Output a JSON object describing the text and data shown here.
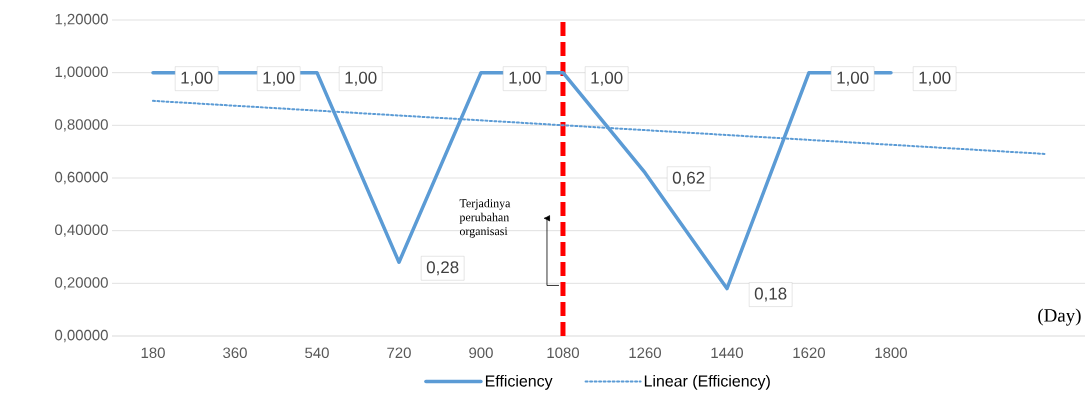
{
  "chart_data": {
    "type": "line",
    "xlabel": "(Day)",
    "x": [
      180,
      360,
      540,
      720,
      900,
      1080,
      1260,
      1440,
      1620,
      1800
    ],
    "series": [
      {
        "name": "Efficiency",
        "color": "#5b9bd5",
        "line_style": "solid",
        "values": [
          1.0,
          1.0,
          1.0,
          0.28,
          1.0,
          1.0,
          0.62,
          0.18,
          1.0,
          1.0
        ],
        "value_labels": [
          "1,00",
          "1,00",
          "1,00",
          "0,28",
          "1,00",
          "1,00",
          "0,62",
          "0,18",
          "1,00",
          "1,00"
        ]
      },
      {
        "name": "Linear (Efficiency)",
        "type": "line",
        "color": "#5b9bd5",
        "line_style": "dotted",
        "x": [
          180,
          2142
        ],
        "values": [
          0.893,
          0.691
        ]
      }
    ],
    "xlim": [
      90,
      2226
    ],
    "xticks": [
      180,
      360,
      540,
      720,
      900,
      1080,
      1260,
      1440,
      1620,
      1800
    ],
    "ylim": [
      0,
      1.2
    ],
    "yticks": [
      {
        "value": 0,
        "label": "0,00000"
      },
      {
        "value": 0.2,
        "label": "0,20000"
      },
      {
        "value": 0.4,
        "label": "0,40000"
      },
      {
        "value": 0.6,
        "label": "0,60000"
      },
      {
        "value": 0.8,
        "label": "0,80000"
      },
      {
        "value": 1.0,
        "label": "1,00000"
      },
      {
        "value": 1.2,
        "label": "1,20000"
      }
    ],
    "ref_lines": [
      {
        "axis": "x",
        "value": 1080,
        "color": "#ff0000",
        "line_style": "dashed"
      }
    ],
    "annotations": [
      "Terjadinya perubahan organisasi"
    ],
    "grid": "y",
    "legend": "bottom",
    "marker": "none"
  }
}
